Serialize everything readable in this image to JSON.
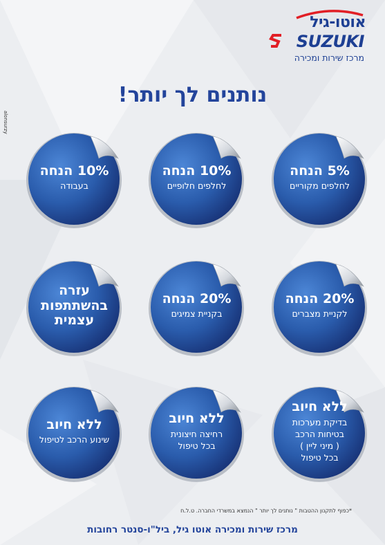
{
  "logo": {
    "brand_hebrew": "אוטו-גיל",
    "brand_english": "SUZUKI",
    "tagline": "מרכז שירות ומכירה",
    "mark_icon": "suzuki-s-icon"
  },
  "headline": "נותנים לך יותר!",
  "side_tag": "alonsurzy",
  "badges": [
    {
      "main": "5% הנחה",
      "sub": [
        "לחלפים מקוריים"
      ]
    },
    {
      "main": "10% הנחה",
      "sub": [
        "לחלפים חלופיים"
      ]
    },
    {
      "main": "10% הנחה",
      "sub": [
        "בעבודה"
      ]
    },
    {
      "main": "20% הנחה",
      "sub": [
        "לקניית מצברים"
      ]
    },
    {
      "main": "20% הנחה",
      "sub": [
        "בקניית צמיגים"
      ]
    },
    {
      "main": [
        "עזרה",
        "בהשתתפות",
        "עצמית"
      ],
      "sub": []
    },
    {
      "main": "ללא חיוב",
      "sub": [
        "בדיקת מערכות",
        "בטיחות הרכב",
        "( מיני ליין )",
        "בכל טיפול"
      ]
    },
    {
      "main": "ללא חיוב",
      "sub": [
        "רחיצה חיצונית",
        "בכל טיפול"
      ]
    },
    {
      "main": "ללא חיוב",
      "sub": [
        "שינוע הרכב לטיפול"
      ]
    }
  ],
  "footnote": "*כפוף לתקנון ההטבות \" נותנים לך יותר \" הנמצא במשרדי החברה. ט.ל.ח",
  "footer": "מרכז שירות ומכירה אוטו גיל, ביל\"ו-סנטר רחובות",
  "colors": {
    "brand_blue": "#23449b",
    "logo_red": "#e11f26",
    "badge_blue": "#2d60b0"
  }
}
